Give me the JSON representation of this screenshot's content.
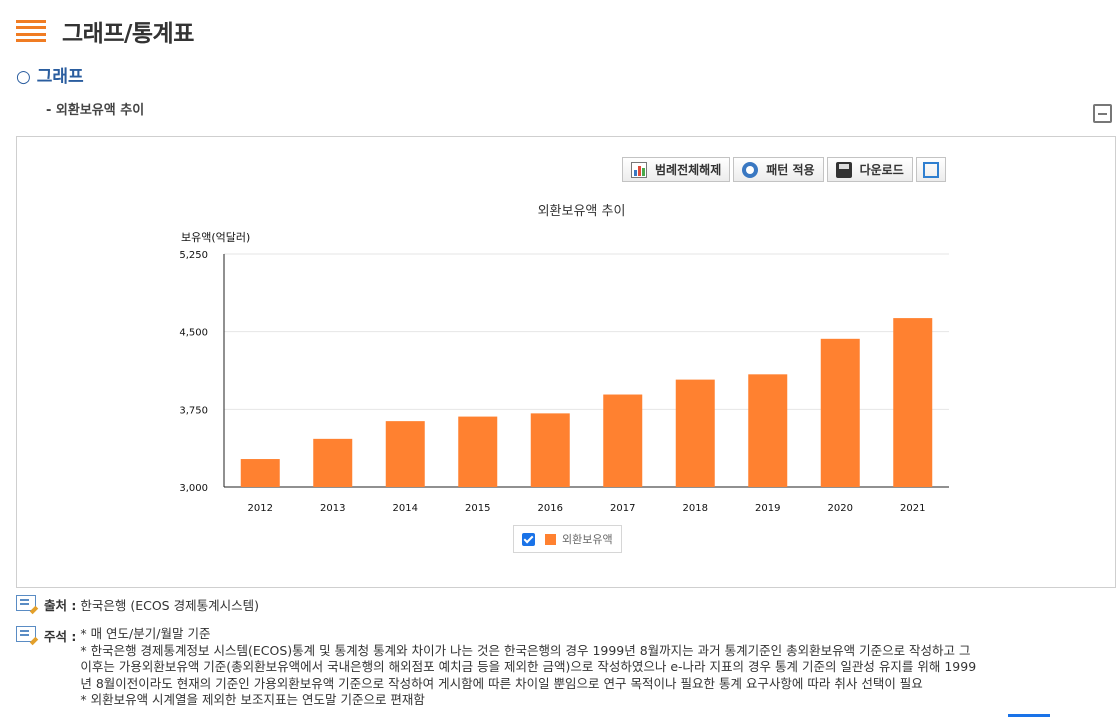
{
  "header": {
    "title": "그래프/통계표",
    "menu_icon": "hamburger-menu-icon"
  },
  "section": {
    "title": "○ 그래프",
    "subtitle": "- 외환보유액 추이"
  },
  "toolbar": {
    "legend_toggle_label": "범례전체해제",
    "pattern_label": "패턴 적용",
    "download_label": "다운로드",
    "expand_icon": "fullscreen-icon"
  },
  "colors": {
    "bar": "#ff8130",
    "accent": "#f07c23",
    "title_blue": "#2a5d9f"
  },
  "chart_data": {
    "type": "bar",
    "title": "외환보유액 추이",
    "ylabel": "보유액(억달러)",
    "xlabel": "",
    "categories": [
      "2012",
      "2013",
      "2014",
      "2015",
      "2016",
      "2017",
      "2018",
      "2019",
      "2020",
      "2021"
    ],
    "series": [
      {
        "name": "외환보유액",
        "values": [
          3270,
          3465,
          3636,
          3680,
          3711,
          3893,
          4037,
          4088,
          4431,
          4631
        ]
      }
    ],
    "ylim": [
      3000,
      5250
    ],
    "yticks": [
      "3,000",
      "3,750",
      "4,500",
      "5,250"
    ],
    "ytick_values": [
      3000,
      3750,
      4500,
      5250
    ],
    "grid": true,
    "legend_position": "bottom"
  },
  "notes": {
    "source_label": "출처 :",
    "source_text": "한국은행 (ECOS 경제통계시스템)",
    "remark_label": "주석 :",
    "remark_lines": [
      "* 매 연도/분기/월말 기준",
      "* 한국은행 경제통계정보 시스템(ECOS)통계 및 통계청 통계와 차이가 나는 것은 한국은행의 경우 1999년 8월까지는 과거 통계기준인 총외환보유액 기준으로 작성하고 그",
      "이후는 가용외환보유액 기준(총외환보유액에서 국내은행의 해외점포 예치금 등을 제외한 금액)으로 작성하였으나 e-나라 지표의 경우 통계 기준의 일관성 유지를 위해 1999",
      "년 8월이전이라도 현재의 기준인 가용외환보유액 기준으로 작성하여 게시함에 따른 차이일 뿐임으로 연구 목적이나 필요한 통계 요구사항에 따라 취사 선택이 필요",
      "* 외환보유액 시계열을 제외한 보조지표는 연도말 기준으로 편재함"
    ]
  }
}
